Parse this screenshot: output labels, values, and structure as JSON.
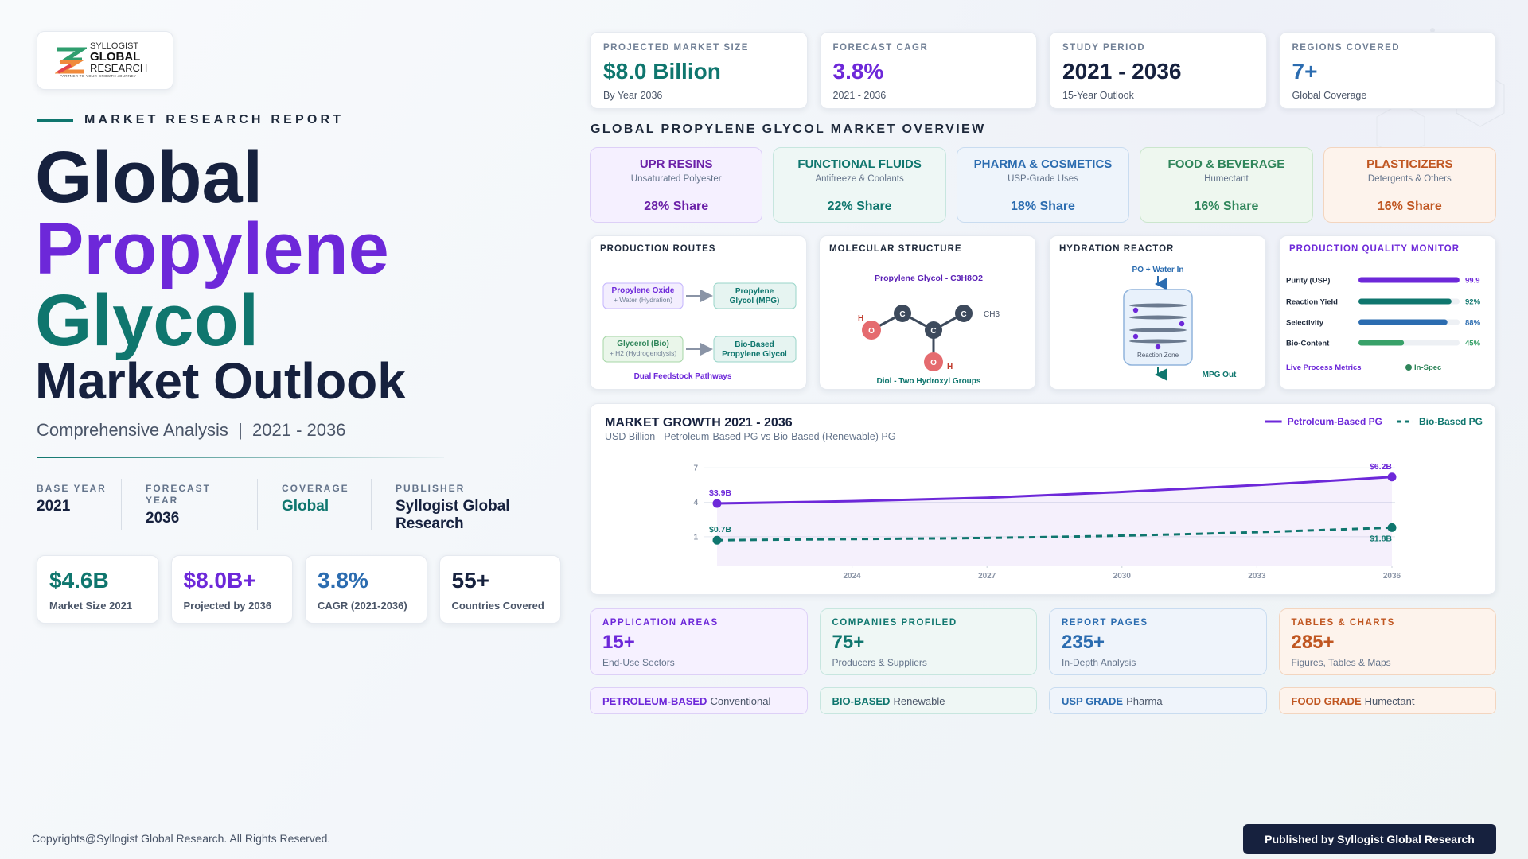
{
  "logo": {
    "name_lines": [
      "SYLLOGIST",
      "GLOBAL",
      "RESEARCH"
    ],
    "tagline": "PARTNER TO YOUR GROWTH JOURNEY"
  },
  "hero": {
    "eyebrow": "MARKET RESEARCH REPORT",
    "title_lines": [
      "Global",
      "Propylene",
      "Glycol"
    ],
    "title_sub": "Market Outlook",
    "subtitle": "Comprehensive Analysis  |  2021 - 2036"
  },
  "meta": [
    {
      "label": "BASE YEAR",
      "value": "2021"
    },
    {
      "label": "FORECAST YEAR",
      "value": "2036"
    },
    {
      "label": "COVERAGE",
      "value": "Global"
    },
    {
      "label": "PUBLISHER",
      "value": "Syllogist Global Research"
    }
  ],
  "highlights": [
    {
      "value": "$4.6B",
      "label": "Market Size 2021"
    },
    {
      "value": "$8.0B+",
      "label": "Projected by 2036"
    },
    {
      "value": "3.8%",
      "label": "CAGR (2021-2036)"
    },
    {
      "value": "55+",
      "label": "Countries Covered"
    }
  ],
  "kpis": [
    {
      "label": "PROJECTED MARKET SIZE",
      "value": "$8.0 Billion",
      "note": "By Year 2036"
    },
    {
      "label": "FORECAST CAGR",
      "value": "3.8%",
      "note": "2021 - 2036"
    },
    {
      "label": "STUDY PERIOD",
      "value": "2021 - 2036",
      "note": "15-Year Outlook"
    },
    {
      "label": "REGIONS COVERED",
      "value": "7+",
      "note": "Global Coverage"
    }
  ],
  "overview": {
    "title": "GLOBAL PROPYLENE GLYCOL MARKET OVERVIEW",
    "segments": [
      {
        "name": "UPR RESINS",
        "desc": "Unsaturated Polyester",
        "share": "28% Share"
      },
      {
        "name": "FUNCTIONAL FLUIDS",
        "desc": "Antifreeze & Coolants",
        "share": "22% Share"
      },
      {
        "name": "PHARMA & COSMETICS",
        "desc": "USP-Grade Uses",
        "share": "18% Share"
      },
      {
        "name": "FOOD & BEVERAGE",
        "desc": "Humectant",
        "share": "16% Share"
      },
      {
        "name": "PLASTICIZERS",
        "desc": "Detergents & Others",
        "share": "16% Share"
      }
    ]
  },
  "routes": {
    "title": "PRODUCTION ROUTES",
    "rows": [
      {
        "input": "Propylene Oxide",
        "input_note": "+ Water (Hydration)",
        "output_lines": [
          "Propylene",
          "Glycol (MPG)"
        ]
      },
      {
        "input": "Glycerol (Bio)",
        "input_note": "+ H2 (Hydrogenolysis)",
        "output_lines": [
          "Bio-Based",
          "Propylene Glycol"
        ]
      }
    ],
    "caption": "Dual Feedstock Pathways"
  },
  "molecule": {
    "title": "MOLECULAR STRUCTURE",
    "formula": "Propylene Glycol - C3H8O2",
    "atoms": [
      "O",
      "C",
      "C",
      "C",
      "O"
    ],
    "labels": [
      "H",
      "CH3",
      "H"
    ],
    "caption": "Diol - Two Hydroxyl Groups"
  },
  "reactor": {
    "title": "HYDRATION REACTOR",
    "inlet": "PO + Water In",
    "zone": "Reaction Zone",
    "outlet": "MPG Out"
  },
  "quality": {
    "title": "PRODUCTION QUALITY MONITOR",
    "xlim": [
      0,
      100
    ],
    "metrics": [
      {
        "name": "Purity (USP)",
        "value": 99.9,
        "color": "#6d28d9"
      },
      {
        "name": "Reaction Yield",
        "value": 92,
        "value_label": "92%",
        "color": "#0f766e"
      },
      {
        "name": "Selectivity",
        "value": 88,
        "value_label": "88%",
        "color": "#2b6cb0"
      },
      {
        "name": "Bio-Content",
        "value": 45,
        "value_label": "45%",
        "color": "#38a169"
      }
    ],
    "footer": "Live Process Metrics",
    "status": "In-Spec"
  },
  "chart_data": {
    "type": "line",
    "title": "MARKET GROWTH 2021 - 2036",
    "subtitle": "USD Billion - Petroleum-Based PG vs Bio-Based (Renewable) PG",
    "x": [
      2021,
      2024,
      2027,
      2030,
      2033,
      2036
    ],
    "series": [
      {
        "name": "Petroleum-Based PG",
        "color": "#6d28d9",
        "line_style": "solid",
        "area": true,
        "values": [
          3.9,
          4.1,
          4.4,
          4.9,
          5.5,
          6.2
        ],
        "value_labels": [
          "$3.9B",
          null,
          null,
          null,
          null,
          "$6.2B"
        ]
      },
      {
        "name": "Bio-Based PG",
        "color": "#0f766e",
        "line_style": "dashed",
        "area": false,
        "values": [
          0.7,
          0.8,
          0.9,
          1.1,
          1.4,
          1.8
        ],
        "value_labels": [
          "$0.7B",
          null,
          null,
          null,
          null,
          "$1.8B"
        ]
      }
    ],
    "xlim": [
      2021,
      2036
    ],
    "xticks": [
      2024,
      2027,
      2030,
      2033,
      2036
    ],
    "ylim": [
      -1.5,
      8.4
    ],
    "yticks": [
      1,
      4,
      7
    ],
    "grid": true,
    "legend": "top-right"
  },
  "report_stats": [
    {
      "label": "APPLICATION AREAS",
      "value": "15+",
      "note": "End-Use Sectors"
    },
    {
      "label": "COMPANIES PROFILED",
      "value": "75+",
      "note": "Producers & Suppliers"
    },
    {
      "label": "REPORT PAGES",
      "value": "235+",
      "note": "In-Depth Analysis"
    },
    {
      "label": "TABLES & CHARTS",
      "value": "285+",
      "note": "Figures, Tables & Maps"
    }
  ],
  "tags": [
    {
      "strong": "PETROLEUM-BASED",
      "text": "Conventional"
    },
    {
      "strong": "BIO-BASED",
      "text": "Renewable"
    },
    {
      "strong": "USP GRADE",
      "text": "Pharma"
    },
    {
      "strong": "FOOD GRADE",
      "text": "Humectant"
    }
  ],
  "footer": {
    "copyright": "Copyrights@Syllogist Global Research. All Rights Reserved.",
    "badge": "Published by Syllogist Global Research"
  }
}
